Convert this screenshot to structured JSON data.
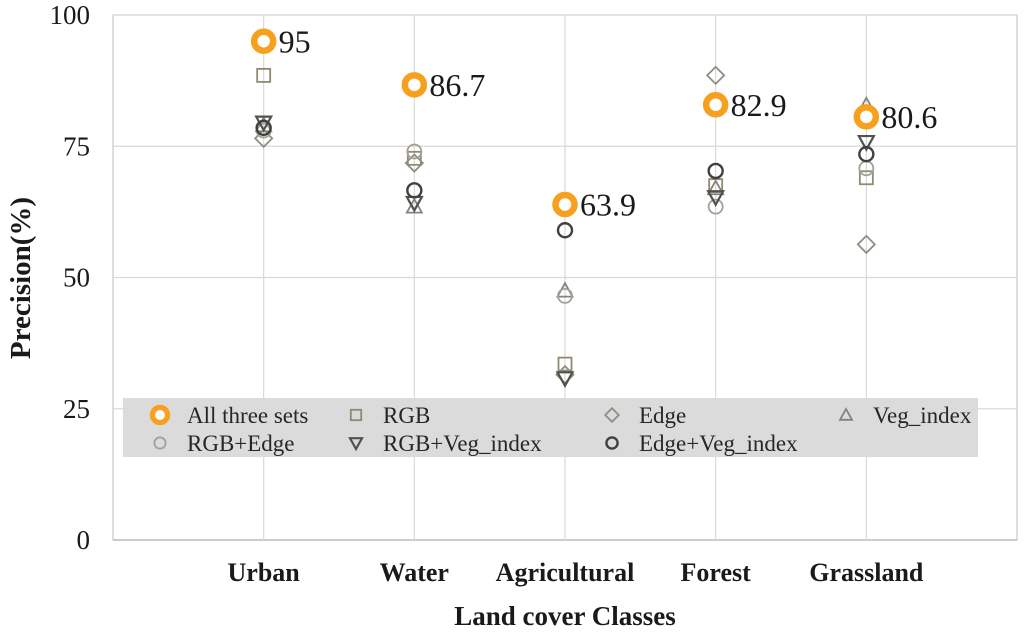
{
  "chart_data": {
    "type": "scatter",
    "title": "",
    "xlabel": "Land cover Classes",
    "ylabel": "Precision(%)",
    "categories": [
      "Urban",
      "Water",
      "Agricultural",
      "Forest",
      "Grassland"
    ],
    "y_ticks": [
      "0",
      "25",
      "50",
      "75",
      "100"
    ],
    "ylim": [
      0,
      100
    ],
    "grid": true,
    "legend_position": "inside-bottom",
    "series": [
      {
        "name": "All three sets",
        "marker": "ring",
        "color": "#F7A01E",
        "values": [
          95,
          86.7,
          63.9,
          82.9,
          80.6
        ],
        "point_labels": [
          "95",
          "86.7",
          "63.9",
          "82.9",
          "80.6"
        ]
      },
      {
        "name": "RGB",
        "marker": "square",
        "color": "#8F8A70",
        "values": [
          88.5,
          72.7,
          33.5,
          67.5,
          69.0
        ]
      },
      {
        "name": "Edge",
        "marker": "diamond",
        "color": "#908E80",
        "values": [
          76.5,
          71.8,
          31.5,
          88.5,
          56.3
        ]
      },
      {
        "name": "Veg_index",
        "marker": "triangle-up",
        "color": "#83837B",
        "values": [
          79.0,
          63.5,
          47.5,
          67.0,
          82.8
        ]
      },
      {
        "name": "RGB+Edge",
        "marker": "circle",
        "color": "#A3A195",
        "values": [
          78.0,
          74.0,
          46.5,
          63.5,
          70.8
        ]
      },
      {
        "name": "RGB+Veg_index",
        "marker": "triangle-down",
        "color": "#52524C",
        "values": [
          79.5,
          64.2,
          30.8,
          65.3,
          75.8
        ]
      },
      {
        "name": "Edge+Veg_index",
        "marker": "circle-dark",
        "color": "#404040",
        "values": [
          78.5,
          66.6,
          59.0,
          70.3,
          73.5
        ]
      }
    ],
    "legend_rows": [
      [
        "All three sets",
        "RGB",
        "Edge",
        "Veg_index"
      ],
      [
        "RGB+Edge",
        "RGB+Veg_index",
        "Edge+Veg_index"
      ]
    ],
    "colors": {
      "accent": "#F7A01E",
      "gridline": "#D9D9D9",
      "plot_border": "#C9C9C9",
      "axis_line": "#B3B3B3",
      "legend_bg": "#DBDBDB",
      "text": "#1A1A1A"
    }
  }
}
